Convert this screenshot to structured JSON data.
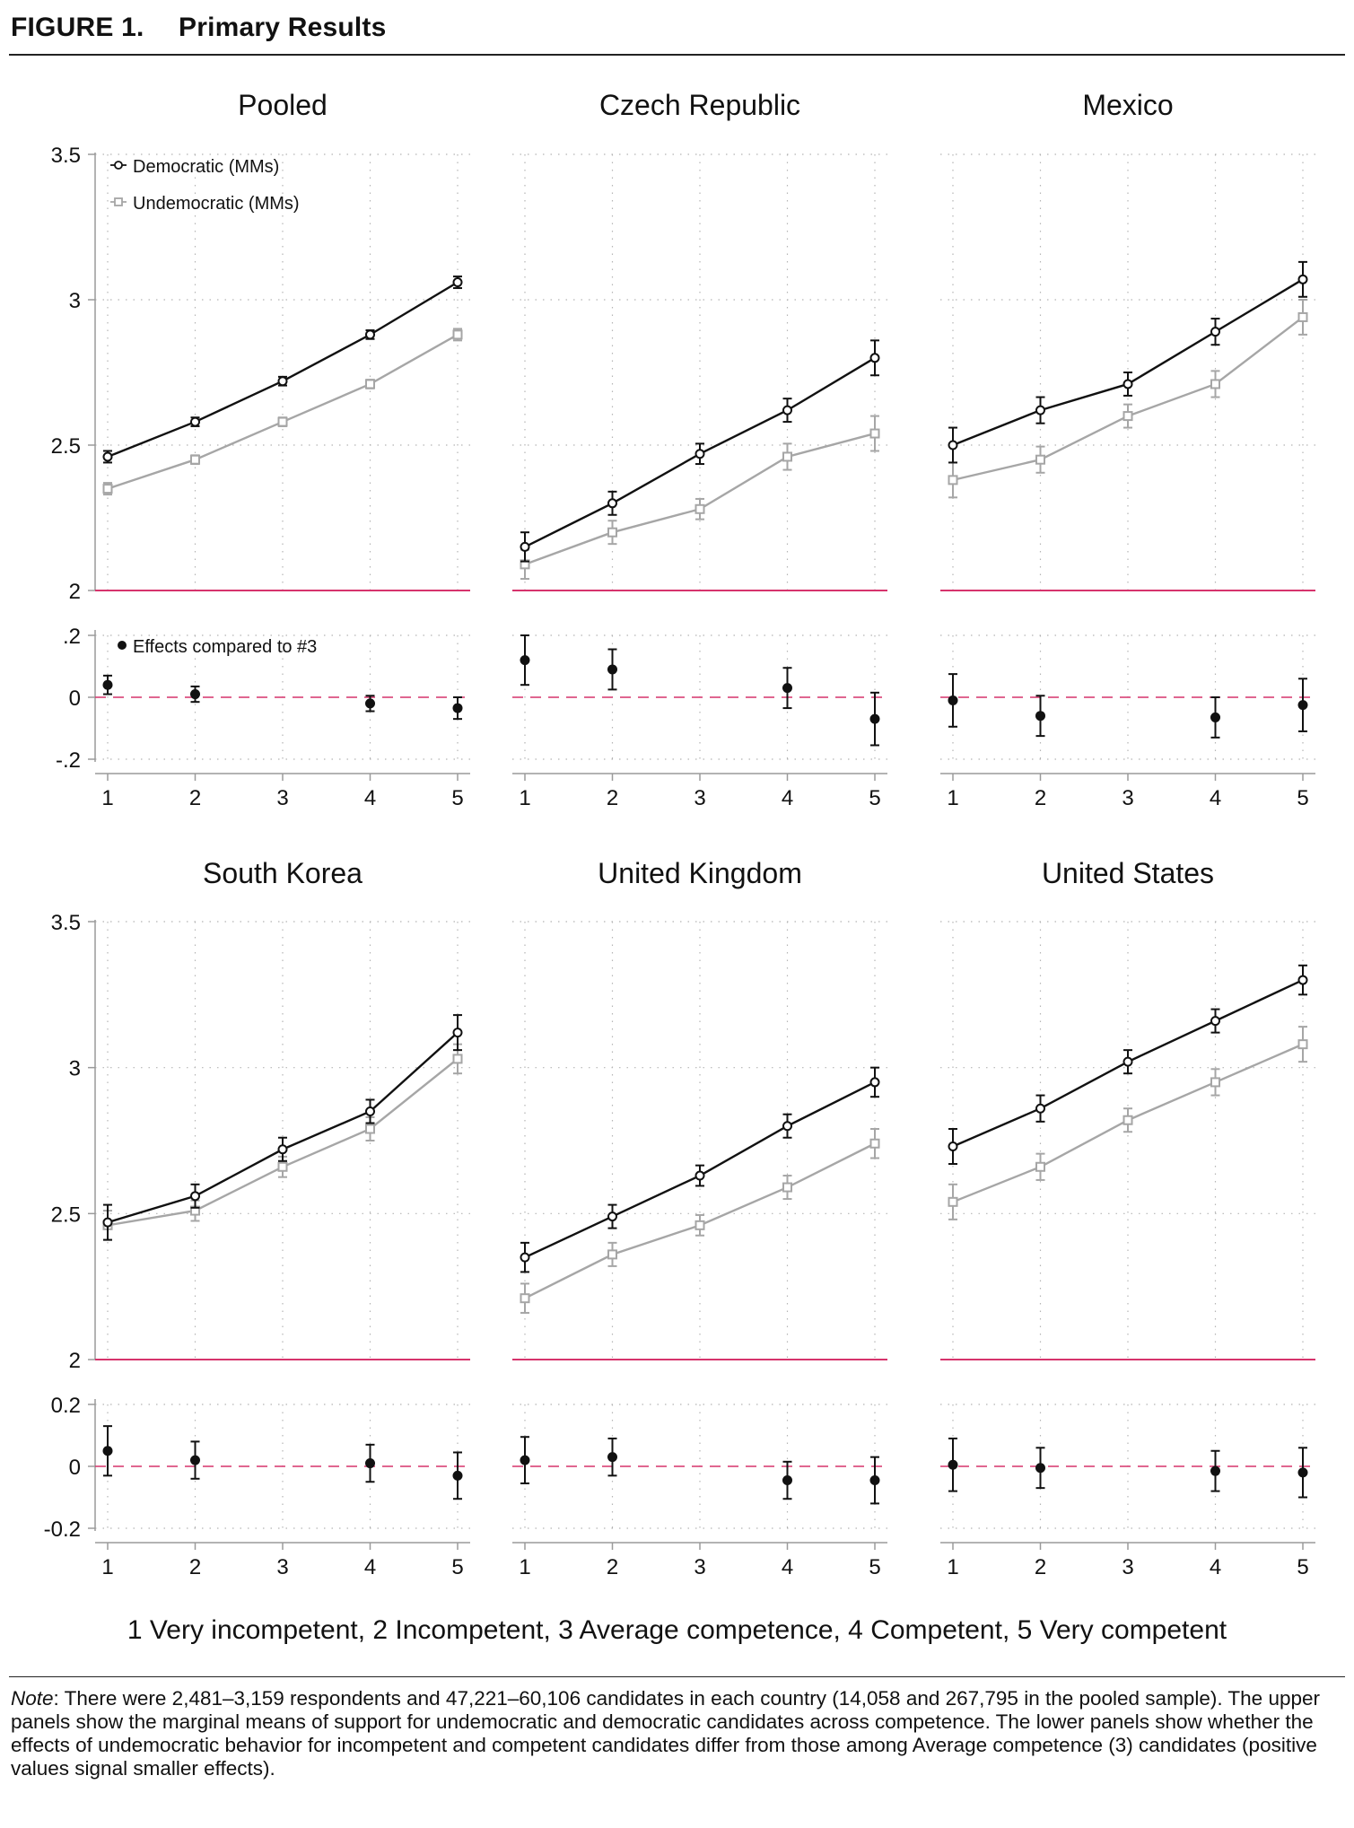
{
  "figure_title": {
    "label": "FIGURE 1.",
    "title": "Primary Results"
  },
  "x_axis_caption": "1 Very incompetent, 2 Incompetent, 3 Average competence, 4 Competent, 5 Very competent",
  "note": {
    "label": "Note",
    "text": ": There were 2,481–3,159 respondents and 47,221–60,106 candidates in each country (14,058 and 267,795 in the pooled sample). The upper panels show the marginal means of support for undemocratic and democratic candidates across competence. The lower panels show whether the effects of undemocratic behavior for incompetent and competent candidates differ from those among Average competence (3) candidates (positive values signal smaller effects)."
  },
  "colors": {
    "democratic": "#111111",
    "undemocratic": "#a6a6a6",
    "reference_line": "#d6336c",
    "effects": "#111111",
    "grid": "#b5b5b5",
    "axis": "#9a9a9a"
  },
  "legend": {
    "democratic": "Democratic (MMs)",
    "undemocratic": "Undemocratic (MMs)",
    "effects": "Effects compared to #3"
  },
  "chart_data": [
    {
      "type": "line",
      "title": "Pooled",
      "x": [
        1,
        2,
        3,
        4,
        5
      ],
      "x_tick_labels": [
        "1",
        "2",
        "3",
        "4",
        "5"
      ],
      "ylim": [
        2,
        3.5
      ],
      "y_ticks": [
        2,
        2.5,
        3,
        3.5
      ],
      "y_tick_labels": [
        "2",
        "2.5",
        "3",
        "3.5"
      ],
      "grid": true,
      "series": [
        {
          "name": "Democratic (MMs)",
          "values": [
            2.46,
            2.58,
            2.72,
            2.88,
            3.06
          ],
          "ci": [
            0.02,
            0.015,
            0.015,
            0.015,
            0.02
          ]
        },
        {
          "name": "Undemocratic (MMs)",
          "values": [
            2.35,
            2.45,
            2.58,
            2.71,
            2.88
          ],
          "ci": [
            0.02,
            0.015,
            0.015,
            0.015,
            0.02
          ]
        }
      ],
      "effects": {
        "name": "Effects compared to #3",
        "ylim": [
          -0.25,
          0.2
        ],
        "y_ticks": [
          -0.2,
          0,
          0.2
        ],
        "y_tick_labels": [
          "-.2",
          "0",
          ".2"
        ],
        "x": [
          1,
          2,
          4,
          5
        ],
        "values": [
          0.04,
          0.01,
          -0.02,
          -0.035
        ],
        "ci": [
          0.03,
          0.025,
          0.025,
          0.035
        ]
      }
    },
    {
      "type": "line",
      "title": "Czech Republic",
      "x": [
        1,
        2,
        3,
        4,
        5
      ],
      "x_tick_labels": [
        "1",
        "2",
        "3",
        "4",
        "5"
      ],
      "ylim": [
        2,
        3.5
      ],
      "y_ticks": [
        2,
        2.5,
        3,
        3.5
      ],
      "grid": true,
      "series": [
        {
          "name": "Democratic (MMs)",
          "values": [
            2.15,
            2.3,
            2.47,
            2.62,
            2.8
          ],
          "ci": [
            0.05,
            0.04,
            0.035,
            0.04,
            0.06
          ]
        },
        {
          "name": "Undemocratic (MMs)",
          "values": [
            2.09,
            2.2,
            2.28,
            2.46,
            2.54
          ],
          "ci": [
            0.05,
            0.04,
            0.035,
            0.045,
            0.06
          ]
        }
      ],
      "effects": {
        "name": "Effects compared to #3",
        "ylim": [
          -0.25,
          0.2
        ],
        "y_ticks": [
          -0.2,
          0,
          0.2
        ],
        "x": [
          1,
          2,
          4,
          5
        ],
        "values": [
          0.12,
          0.09,
          0.03,
          -0.07
        ],
        "ci": [
          0.08,
          0.065,
          0.065,
          0.085
        ]
      }
    },
    {
      "type": "line",
      "title": "Mexico",
      "x": [
        1,
        2,
        3,
        4,
        5
      ],
      "x_tick_labels": [
        "1",
        "2",
        "3",
        "4",
        "5"
      ],
      "ylim": [
        2,
        3.5
      ],
      "y_ticks": [
        2,
        2.5,
        3,
        3.5
      ],
      "grid": true,
      "series": [
        {
          "name": "Democratic (MMs)",
          "values": [
            2.5,
            2.62,
            2.71,
            2.89,
            3.07
          ],
          "ci": [
            0.06,
            0.045,
            0.04,
            0.045,
            0.06
          ]
        },
        {
          "name": "Undemocratic (MMs)",
          "values": [
            2.38,
            2.45,
            2.6,
            2.71,
            2.94
          ],
          "ci": [
            0.06,
            0.045,
            0.04,
            0.045,
            0.06
          ]
        }
      ],
      "effects": {
        "name": "Effects compared to #3",
        "ylim": [
          -0.25,
          0.2
        ],
        "y_ticks": [
          -0.2,
          0,
          0.2
        ],
        "x": [
          1,
          2,
          4,
          5
        ],
        "values": [
          -0.01,
          -0.06,
          -0.065,
          -0.025
        ],
        "ci": [
          0.085,
          0.065,
          0.065,
          0.085
        ]
      }
    },
    {
      "type": "line",
      "title": "South Korea",
      "x": [
        1,
        2,
        3,
        4,
        5
      ],
      "x_tick_labels": [
        "1",
        "2",
        "3",
        "4",
        "5"
      ],
      "ylim": [
        2,
        3.5
      ],
      "y_ticks": [
        2,
        2.5,
        3,
        3.5
      ],
      "grid": true,
      "series": [
        {
          "name": "Democratic (MMs)",
          "values": [
            2.47,
            2.56,
            2.72,
            2.85,
            3.12
          ],
          "ci": [
            0.06,
            0.04,
            0.04,
            0.04,
            0.06
          ]
        },
        {
          "name": "Undemocratic (MMs)",
          "values": [
            2.46,
            2.51,
            2.66,
            2.79,
            3.03
          ],
          "ci": [
            0.05,
            0.035,
            0.035,
            0.04,
            0.05
          ]
        }
      ],
      "effects": {
        "name": "Effects compared to #3",
        "ylim": [
          -0.25,
          0.2
        ],
        "y_ticks": [
          -0.2,
          0,
          0.2
        ],
        "x": [
          1,
          2,
          4,
          5
        ],
        "values": [
          0.05,
          0.02,
          0.01,
          -0.03
        ],
        "ci": [
          0.08,
          0.06,
          0.06,
          0.075
        ]
      }
    },
    {
      "type": "line",
      "title": "United Kingdom",
      "x": [
        1,
        2,
        3,
        4,
        5
      ],
      "x_tick_labels": [
        "1",
        "2",
        "3",
        "4",
        "5"
      ],
      "ylim": [
        2,
        3.5
      ],
      "y_ticks": [
        2,
        2.5,
        3,
        3.5
      ],
      "grid": true,
      "series": [
        {
          "name": "Democratic (MMs)",
          "values": [
            2.35,
            2.49,
            2.63,
            2.8,
            2.95
          ],
          "ci": [
            0.05,
            0.04,
            0.035,
            0.04,
            0.05
          ]
        },
        {
          "name": "Undemocratic (MMs)",
          "values": [
            2.21,
            2.36,
            2.46,
            2.59,
            2.74
          ],
          "ci": [
            0.05,
            0.04,
            0.035,
            0.04,
            0.05
          ]
        }
      ],
      "effects": {
        "name": "Effects compared to #3",
        "ylim": [
          -0.25,
          0.2
        ],
        "y_ticks": [
          -0.2,
          0,
          0.2
        ],
        "x": [
          1,
          2,
          4,
          5
        ],
        "values": [
          0.02,
          0.03,
          -0.045,
          -0.045
        ],
        "ci": [
          0.075,
          0.06,
          0.06,
          0.075
        ]
      }
    },
    {
      "type": "line",
      "title": "United States",
      "x": [
        1,
        2,
        3,
        4,
        5
      ],
      "x_tick_labels": [
        "1",
        "2",
        "3",
        "4",
        "5"
      ],
      "ylim": [
        2,
        3.5
      ],
      "y_ticks": [
        2,
        2.5,
        3,
        3.5
      ],
      "grid": true,
      "series": [
        {
          "name": "Democratic (MMs)",
          "values": [
            2.73,
            2.86,
            3.02,
            3.16,
            3.3
          ],
          "ci": [
            0.06,
            0.045,
            0.04,
            0.04,
            0.05
          ]
        },
        {
          "name": "Undemocratic (MMs)",
          "values": [
            2.54,
            2.66,
            2.82,
            2.95,
            3.08
          ],
          "ci": [
            0.06,
            0.045,
            0.04,
            0.045,
            0.06
          ]
        }
      ],
      "effects": {
        "name": "Effects compared to #3",
        "ylim": [
          -0.25,
          0.2
        ],
        "y_ticks": [
          -0.2,
          0,
          0.2
        ],
        "x": [
          1,
          2,
          4,
          5
        ],
        "values": [
          0.005,
          -0.005,
          -0.015,
          -0.02
        ],
        "ci": [
          0.085,
          0.065,
          0.065,
          0.08
        ]
      }
    }
  ]
}
